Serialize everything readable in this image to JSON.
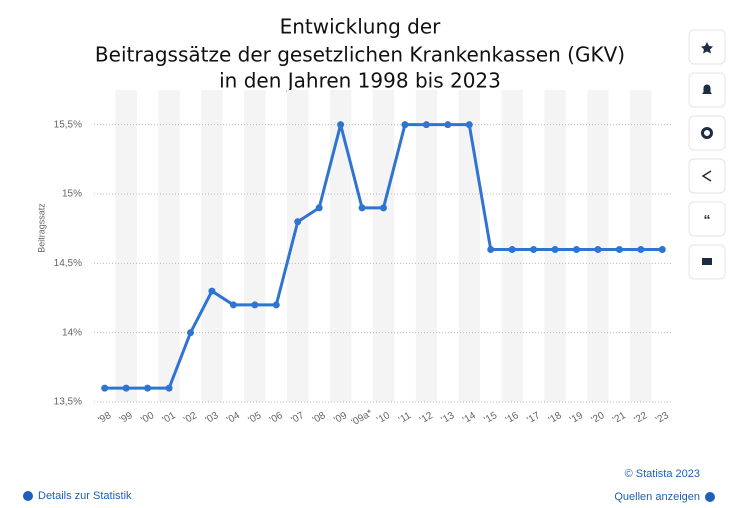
{
  "chart_data": {
    "type": "line",
    "title": [
      "Entwicklung der",
      "Beitragssätze der gesetzlichen Krankenkassen (GKV)",
      "in den Jahren 1998 bis 2023"
    ],
    "y_label": "Beitragssatz",
    "categories": [
      "'98",
      "'99",
      "'00",
      "'01",
      "'02",
      "'03",
      "'04",
      "'05",
      "'06",
      "'07",
      "'08",
      "'09",
      "'09a*",
      "'10",
      "'11",
      "'12",
      "'13",
      "'14",
      "'15",
      "'16",
      "'17",
      "'18",
      "'19",
      "'20",
      "'21",
      "'22",
      "'23"
    ],
    "values": [
      13.6,
      13.6,
      13.6,
      13.6,
      14.0,
      14.3,
      14.2,
      14.2,
      14.2,
      14.8,
      14.9,
      15.5,
      14.9,
      14.9,
      15.5,
      15.5,
      15.5,
      15.5,
      14.6,
      14.6,
      14.6,
      14.6,
      14.6,
      14.6,
      14.6,
      14.6,
      14.6
    ],
    "color": "#2f74d0",
    "ylim": [
      13.5,
      15.75
    ],
    "yticks": [
      {
        "value": 13.5,
        "label": "13,5%"
      },
      {
        "value": 14,
        "label": "14%"
      },
      {
        "value": 14.5,
        "label": "14,5%"
      },
      {
        "value": 15,
        "label": "15%"
      },
      {
        "value": 15.5,
        "label": "15,5%"
      }
    ],
    "grid": true,
    "credit": "© Statista 2023",
    "details_link": "Details zur Statistik",
    "sources_link": "Quellen anzeigen"
  }
}
